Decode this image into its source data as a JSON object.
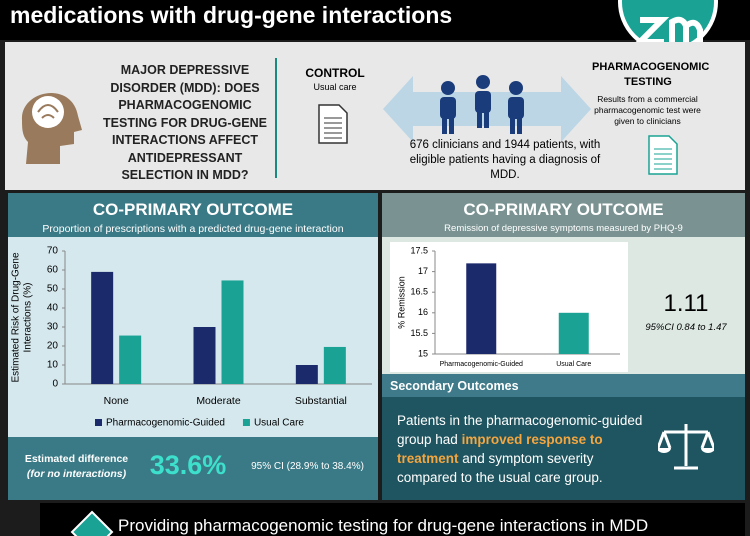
{
  "header": {
    "title": "medications with drug-gene interactions"
  },
  "intro": {
    "question": "MAJOR DEPRESSIVE DISORDER (MDD): DOES PHARMACOGENOMIC TESTING FOR DRUG-GENE INTERACTIONS AFFECT ANTIDEPRESSANT SELECTION IN MDD?",
    "control_title": "CONTROL",
    "control_text": "Usual care",
    "population": "676 clinicians and 1944 patients, with eligible patients having a diagnosis of MDD.",
    "pgx_title": "PHARMACOGENOMIC TESTING",
    "pgx_text": "Results from a commercial pharmacogenomic test were given to clinicians"
  },
  "left_panel": {
    "heading": "CO-PRIMARY OUTCOME",
    "estimate_label": "Estimated difference",
    "estimate_note": "(for no interactions)",
    "estimate_value": "33.6%",
    "estimate_ci": "95% CI (28.9% to 38.4%)"
  },
  "right_panel": {
    "heading": "CO-PRIMARY OUTCOME",
    "effect": "1.11",
    "effect_ci": "95%CI 0.84 to 1.47",
    "secondary_heading": "Secondary Outcomes",
    "secondary_text": [
      "Patients in the pharmacogenomic-guided group had ",
      "improved response to treatment",
      " and symptom severity compared to the usual care group."
    ]
  },
  "footer": {
    "text": "Providing pharmacogenomic testing for drug-gene interactions in MDD"
  },
  "chart_data": [
    {
      "type": "bar",
      "title": "Proportion of prescriptions with a predicted drug-gene interaction",
      "categories": [
        "None",
        "Moderate",
        "Substantial"
      ],
      "series": [
        {
          "name": "Pharmacogenomic-Guided",
          "color": "#1b2a6b",
          "values": [
            59,
            30,
            10
          ]
        },
        {
          "name": "Usual Care",
          "color": "#1aa394",
          "values": [
            25.5,
            54.5,
            19.5
          ]
        }
      ],
      "ylabel": [
        "Estimated Risk of Drug-Gene",
        "Interactions (%)"
      ],
      "ylim": [
        0,
        70
      ],
      "yticks": [
        0,
        10,
        20,
        30,
        40,
        50,
        60,
        70
      ],
      "grid": false,
      "legend": "bottom"
    },
    {
      "type": "bar",
      "title": "Remission of depressive symptoms measured by PHQ-9",
      "categories": [
        "Pharmacogenomic-Guided",
        "Usual Care"
      ],
      "values": [
        17.2,
        16.0
      ],
      "colors": [
        "#1b2a6b",
        "#1aa394"
      ],
      "ylabel": [
        "% Remission"
      ],
      "ylim": [
        15,
        17.5
      ],
      "yticks": [
        15,
        15.5,
        16,
        16.5,
        17,
        17.5
      ],
      "grid": false
    }
  ]
}
